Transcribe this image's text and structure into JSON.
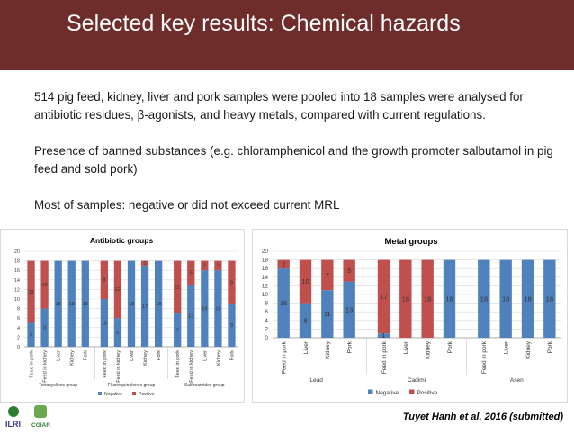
{
  "slide": {
    "title": "Selected key results: Chemical hazards",
    "paragraphs": [
      "514 pig feed, kidney, liver and pork samples were pooled into 18 samples were analysed for antibiotic residues, β-agonists, and heavy metals, compared with current regulations.",
      "Presence of banned substances (e.g. chloramphenicol and the growth promoter salbutamol in pig feed and sold pork)",
      "Most of samples:  negative or did not exceed current MRL"
    ],
    "citation": "Tuyet Hanh et al, 2016 (submitted)",
    "logos": {
      "ilri": "ILRI",
      "cgiar": "CGIAR"
    }
  },
  "colors": {
    "header_bg": "#6e2d2b",
    "negative": "#4f81bd",
    "positive": "#c0504d"
  },
  "chart_data": [
    {
      "type": "bar",
      "stacked": true,
      "title": "Antibiotic groups",
      "ylim": [
        0,
        20
      ],
      "yticks": [
        0,
        2,
        4,
        6,
        8,
        10,
        12,
        14,
        16,
        18,
        20
      ],
      "categories": [
        "Feed in pork",
        "Feed in kidney",
        "Liver",
        "Kidney",
        "Pork",
        "Feed in pork",
        "Feed in kidney",
        "Liver",
        "Kidney",
        "Pork",
        "Feed in pork",
        "Feed in kidney",
        "Liver",
        "Kidney",
        "Pork"
      ],
      "groups": [
        {
          "label": "Tetracyclines group",
          "start": 0,
          "count": 5
        },
        {
          "label": "Fluoroquinolones group",
          "start": 5,
          "count": 5
        },
        {
          "label": "Sulfonamides group",
          "start": 10,
          "count": 5
        }
      ],
      "series": [
        {
          "name": "Negative",
          "values": [
            5,
            8,
            18,
            18,
            18,
            10,
            6,
            18,
            17,
            18,
            7,
            13,
            16,
            16,
            9
          ]
        },
        {
          "name": "Positive",
          "values": [
            13,
            10,
            0,
            0,
            0,
            8,
            12,
            0,
            1,
            0,
            11,
            5,
            2,
            2,
            9
          ]
        }
      ],
      "legend": "bottom"
    },
    {
      "type": "bar",
      "stacked": true,
      "title": "Metal groups",
      "ylim": [
        0,
        20
      ],
      "yticks": [
        0,
        2,
        4,
        6,
        8,
        10,
        12,
        14,
        16,
        18,
        20
      ],
      "categories": [
        "Feed in pork",
        "Liver",
        "Kidney",
        "Pork",
        "Feed in pork",
        "Liver",
        "Kidney",
        "Pork",
        "Feed in pork",
        "Liver",
        "Kidney",
        "Pork"
      ],
      "groups": [
        {
          "label": "Lead",
          "start": 0,
          "count": 4
        },
        {
          "label": "Cadimi",
          "start": 4,
          "count": 4
        },
        {
          "label": "Asen",
          "start": 8,
          "count": 4
        }
      ],
      "series": [
        {
          "name": "Negative",
          "values": [
            16,
            8,
            11,
            13,
            1,
            0,
            0,
            18,
            18,
            18,
            18,
            18
          ]
        },
        {
          "name": "Positive",
          "values": [
            2,
            10,
            7,
            5,
            17,
            18,
            18,
            0,
            0,
            0,
            0,
            0
          ]
        }
      ],
      "legend": "bottom"
    }
  ]
}
